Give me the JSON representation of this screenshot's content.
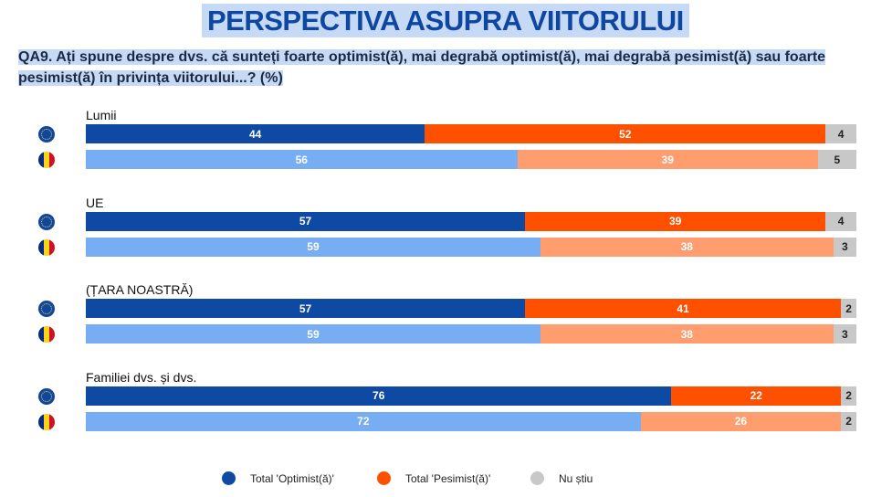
{
  "chart_data": {
    "type": "bar",
    "stacked": true,
    "orientation": "horizontal",
    "title": "PERSPECTIVA ASUPRA VIITORULUI",
    "subtitle": "QA9. Ați spune despre dvs. că sunteți foarte optimist(ă), mai degrabă optimist(ă), mai degrabă pesimist(ă) sau foarte pesimist(ă) în privința viitorului...? (%)",
    "xlim": [
      0,
      100
    ],
    "legend_position": "bottom",
    "legend": [
      "Total 'Optimist(ă)'",
      "Total 'Pesimist(ă)'",
      "Nu știu"
    ],
    "colors": {
      "eu_opt": "#0e4aa3",
      "eu_pes": "#ff5000",
      "ro_opt": "#77adf2",
      "ro_pes": "#ff9d6e",
      "dk": "#c8c8c8"
    },
    "groups": [
      {
        "label": "Lumii",
        "rows": [
          {
            "flag": "EU",
            "values": [
              44,
              52,
              4
            ]
          },
          {
            "flag": "RO",
            "values": [
              56,
              39,
              5
            ]
          }
        ]
      },
      {
        "label": "UE",
        "rows": [
          {
            "flag": "EU",
            "values": [
              57,
              39,
              4
            ]
          },
          {
            "flag": "RO",
            "values": [
              59,
              38,
              3
            ]
          }
        ]
      },
      {
        "label": "(ȚARA NOASTRĂ)",
        "rows": [
          {
            "flag": "EU",
            "values": [
              57,
              41,
              2
            ]
          },
          {
            "flag": "RO",
            "values": [
              59,
              38,
              3
            ]
          }
        ]
      },
      {
        "label": "Familiei dvs. și dvs.",
        "rows": [
          {
            "flag": "EU",
            "values": [
              76,
              22,
              2
            ]
          },
          {
            "flag": "RO",
            "values": [
              72,
              26,
              2
            ]
          }
        ]
      }
    ]
  }
}
